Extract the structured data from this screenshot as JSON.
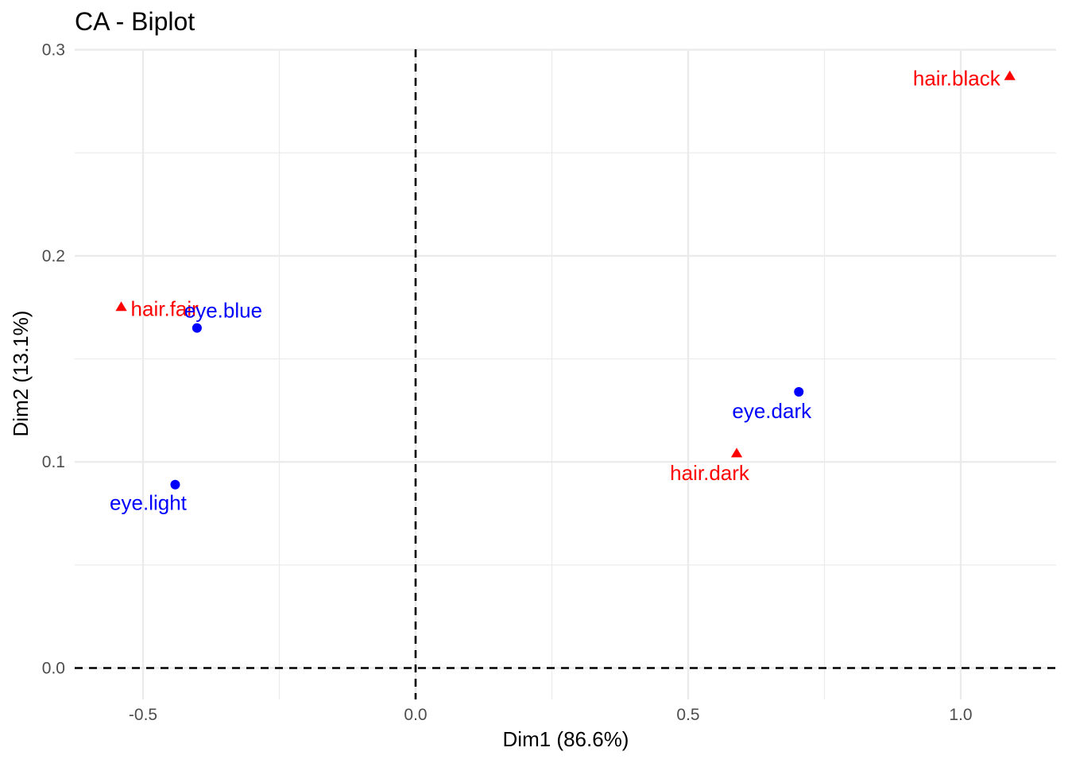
{
  "chart_data": {
    "type": "scatter",
    "title": "CA - Biplot",
    "xlabel": "Dim1 (86.6%)",
    "ylabel": "Dim2 (13.1%)",
    "xlim": [
      -0.625,
      1.175
    ],
    "ylim": [
      -0.013,
      0.3
    ],
    "x_ticks": [
      -0.5,
      0.0,
      0.5,
      1.0
    ],
    "x_tick_labels": [
      "-0.5",
      "0.0",
      "0.5",
      "1.0"
    ],
    "y_ticks": [
      0.0,
      0.1,
      0.2,
      0.3
    ],
    "y_tick_labels": [
      "0.0",
      "0.1",
      "0.2",
      "0.3"
    ],
    "grid": true,
    "reference_lines": {
      "x": 0,
      "y": 0,
      "style": "dashed"
    },
    "series": [
      {
        "color": "#ff0000",
        "marker": "triangle",
        "points": [
          {
            "label": "hair.black",
            "x": 1.09,
            "y": 0.287
          },
          {
            "label": "hair.fair",
            "x": -0.54,
            "y": 0.175
          },
          {
            "label": "hair.dark",
            "x": 0.589,
            "y": 0.104
          }
        ]
      },
      {
        "color": "#0000ff",
        "marker": "circle",
        "points": [
          {
            "label": "eye.blue",
            "x": -0.401,
            "y": 0.165
          },
          {
            "label": "eye.dark",
            "x": 0.703,
            "y": 0.134
          },
          {
            "label": "eye.light",
            "x": -0.441,
            "y": 0.089
          }
        ]
      }
    ]
  }
}
